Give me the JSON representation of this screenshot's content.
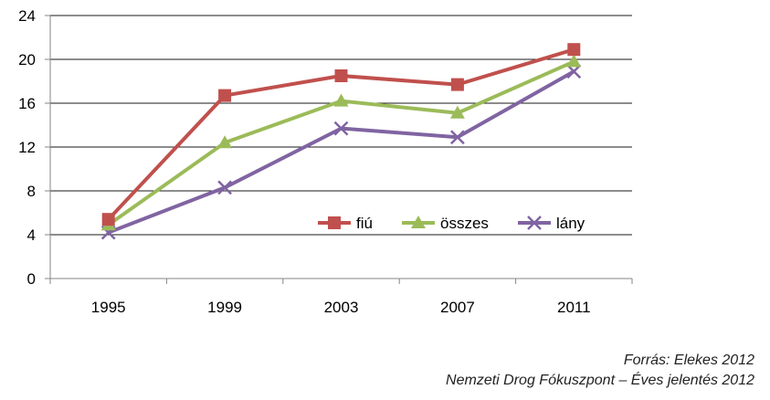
{
  "chart_data": {
    "type": "line",
    "categories": [
      "1995",
      "1999",
      "2003",
      "2007",
      "2011"
    ],
    "ylim": [
      0,
      24
    ],
    "yticks": [
      "0",
      "4",
      "8",
      "12",
      "16",
      "20",
      "24"
    ],
    "grid": true,
    "legend_position": "inside-lower-right",
    "series": [
      {
        "name": "fiú",
        "values": [
          5.4,
          16.7,
          18.5,
          17.7,
          20.9
        ],
        "color": "#c0504d",
        "marker": "square"
      },
      {
        "name": "összes",
        "values": [
          4.9,
          12.4,
          16.2,
          15.1,
          19.8
        ],
        "color": "#9bbb59",
        "marker": "triangle"
      },
      {
        "name": "lány",
        "values": [
          4.2,
          8.3,
          13.7,
          12.9,
          18.9
        ],
        "color": "#8064a2",
        "marker": "x"
      }
    ]
  },
  "source": {
    "line1": "Forrás: Elekes 2012",
    "line2": "Nemzeti Drog Fókuszpont – Éves jelentés 2012"
  }
}
